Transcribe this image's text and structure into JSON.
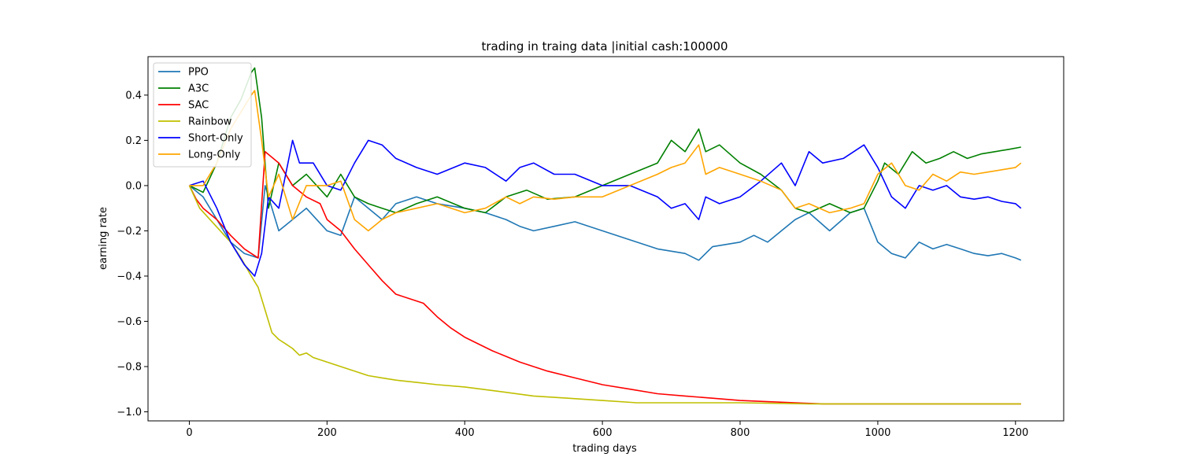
{
  "chart_data": {
    "type": "line",
    "title": "trading in traing data |initial cash:100000",
    "xlabel": "trading days",
    "ylabel": "earning rate",
    "xlim": [
      -60,
      1270
    ],
    "ylim": [
      -1.04,
      0.57
    ],
    "xticks": [
      0,
      200,
      400,
      600,
      800,
      1000,
      1200
    ],
    "yticks": [
      -1.0,
      -0.8,
      -0.6,
      -0.4,
      -0.2,
      0.0,
      0.2,
      0.4
    ],
    "ytick_labels": [
      "−1.0",
      "−0.8",
      "−0.6",
      "−0.4",
      "−0.2",
      "0.0",
      "0.2",
      "0.4"
    ],
    "grid": false,
    "legend_position": "top-left",
    "series": [
      {
        "name": "PPO",
        "color": "#1f77b4",
        "x": [
          0,
          20,
          40,
          60,
          80,
          100,
          110,
          130,
          150,
          170,
          200,
          220,
          240,
          260,
          280,
          300,
          330,
          360,
          400,
          430,
          460,
          480,
          500,
          530,
          560,
          600,
          640,
          680,
          720,
          740,
          760,
          780,
          800,
          820,
          840,
          860,
          880,
          900,
          930,
          960,
          980,
          1000,
          1020,
          1040,
          1060,
          1080,
          1100,
          1120,
          1140,
          1160,
          1180,
          1200,
          1208
        ],
        "values": [
          0.0,
          -0.05,
          -0.15,
          -0.25,
          -0.3,
          -0.32,
          0.0,
          -0.2,
          -0.15,
          -0.1,
          -0.2,
          -0.22,
          -0.05,
          -0.1,
          -0.15,
          -0.08,
          -0.05,
          -0.08,
          -0.1,
          -0.12,
          -0.15,
          -0.18,
          -0.2,
          -0.18,
          -0.16,
          -0.2,
          -0.24,
          -0.28,
          -0.3,
          -0.33,
          -0.27,
          -0.26,
          -0.25,
          -0.22,
          -0.25,
          -0.2,
          -0.15,
          -0.12,
          -0.2,
          -0.12,
          -0.1,
          -0.25,
          -0.3,
          -0.32,
          -0.25,
          -0.28,
          -0.26,
          -0.28,
          -0.3,
          -0.31,
          -0.3,
          -0.32,
          -0.33
        ]
      },
      {
        "name": "A3C",
        "color": "#008000",
        "x": [
          0,
          20,
          40,
          60,
          75,
          90,
          95,
          105,
          115,
          130,
          150,
          170,
          200,
          220,
          240,
          260,
          280,
          300,
          330,
          360,
          400,
          430,
          460,
          490,
          520,
          560,
          600,
          640,
          680,
          700,
          720,
          740,
          750,
          770,
          800,
          830,
          860,
          880,
          900,
          930,
          960,
          980,
          1000,
          1010,
          1030,
          1050,
          1070,
          1090,
          1110,
          1130,
          1150,
          1170,
          1190,
          1208
        ],
        "values": [
          0.0,
          -0.03,
          0.1,
          0.3,
          0.38,
          0.5,
          0.52,
          0.3,
          -0.1,
          0.1,
          0.0,
          0.05,
          -0.05,
          0.05,
          -0.05,
          -0.08,
          -0.1,
          -0.12,
          -0.08,
          -0.05,
          -0.1,
          -0.12,
          -0.05,
          -0.02,
          -0.06,
          -0.05,
          0.0,
          0.05,
          0.1,
          0.2,
          0.15,
          0.25,
          0.15,
          0.18,
          0.1,
          0.05,
          -0.02,
          -0.1,
          -0.12,
          -0.08,
          -0.12,
          -0.1,
          0.02,
          0.1,
          0.05,
          0.15,
          0.1,
          0.12,
          0.15,
          0.12,
          0.14,
          0.15,
          0.16,
          0.17
        ]
      },
      {
        "name": "SAC",
        "color": "#ff0000",
        "x": [
          0,
          10,
          20,
          40,
          60,
          80,
          100,
          110,
          130,
          150,
          170,
          190,
          200,
          220,
          240,
          260,
          280,
          300,
          320,
          340,
          360,
          380,
          400,
          440,
          480,
          520,
          560,
          600,
          640,
          680,
          720,
          760,
          800,
          840,
          880,
          920,
          960,
          1000,
          1100,
          1208
        ],
        "values": [
          0.0,
          -0.06,
          -0.1,
          -0.15,
          -0.22,
          -0.28,
          -0.32,
          0.15,
          0.1,
          0.0,
          -0.05,
          -0.08,
          -0.15,
          -0.2,
          -0.28,
          -0.35,
          -0.42,
          -0.48,
          -0.5,
          -0.52,
          -0.58,
          -0.63,
          -0.67,
          -0.73,
          -0.78,
          -0.82,
          -0.85,
          -0.88,
          -0.9,
          -0.92,
          -0.93,
          -0.94,
          -0.95,
          -0.955,
          -0.96,
          -0.965,
          -0.965,
          -0.965,
          -0.965,
          -0.965
        ]
      },
      {
        "name": "Rainbow",
        "color": "#bfbf00",
        "x": [
          0,
          15,
          30,
          45,
          60,
          75,
          90,
          100,
          110,
          120,
          130,
          140,
          150,
          160,
          170,
          180,
          200,
          220,
          240,
          260,
          280,
          300,
          330,
          360,
          400,
          450,
          500,
          550,
          600,
          650,
          700,
          750,
          800,
          900,
          1000,
          1100,
          1208
        ],
        "values": [
          0.0,
          -0.1,
          -0.15,
          -0.2,
          -0.25,
          -0.32,
          -0.4,
          -0.45,
          -0.55,
          -0.65,
          -0.68,
          -0.7,
          -0.72,
          -0.75,
          -0.74,
          -0.76,
          -0.78,
          -0.8,
          -0.82,
          -0.84,
          -0.85,
          -0.86,
          -0.87,
          -0.88,
          -0.89,
          -0.91,
          -0.93,
          -0.94,
          -0.95,
          -0.96,
          -0.96,
          -0.96,
          -0.96,
          -0.965,
          -0.965,
          -0.965,
          -0.965
        ]
      },
      {
        "name": "Short-Only",
        "color": "#0000ff",
        "x": [
          0,
          20,
          40,
          60,
          80,
          95,
          105,
          115,
          130,
          150,
          160,
          180,
          200,
          220,
          240,
          260,
          280,
          300,
          330,
          360,
          400,
          430,
          460,
          480,
          500,
          530,
          560,
          600,
          640,
          680,
          700,
          720,
          740,
          750,
          770,
          800,
          830,
          860,
          880,
          900,
          920,
          950,
          980,
          1000,
          1020,
          1040,
          1060,
          1080,
          1100,
          1120,
          1140,
          1160,
          1180,
          1200,
          1208
        ],
        "values": [
          0.0,
          0.02,
          -0.1,
          -0.25,
          -0.35,
          -0.4,
          -0.3,
          -0.05,
          -0.1,
          0.2,
          0.1,
          0.1,
          0.0,
          -0.02,
          0.1,
          0.2,
          0.18,
          0.12,
          0.08,
          0.05,
          0.1,
          0.08,
          0.02,
          0.08,
          0.1,
          0.05,
          0.05,
          0.0,
          0.0,
          -0.05,
          -0.1,
          -0.08,
          -0.15,
          -0.05,
          -0.08,
          -0.05,
          0.02,
          0.1,
          0.0,
          0.15,
          0.1,
          0.12,
          0.18,
          0.08,
          -0.05,
          -0.1,
          0.0,
          -0.02,
          0.0,
          -0.05,
          -0.06,
          -0.05,
          -0.07,
          -0.08,
          -0.1
        ]
      },
      {
        "name": "Long-Only",
        "color": "#ffa500",
        "x": [
          0,
          20,
          40,
          60,
          80,
          90,
          95,
          105,
          115,
          130,
          150,
          170,
          200,
          220,
          240,
          260,
          280,
          300,
          330,
          360,
          400,
          430,
          460,
          480,
          500,
          530,
          560,
          600,
          640,
          680,
          700,
          720,
          740,
          750,
          770,
          800,
          830,
          860,
          880,
          900,
          930,
          960,
          980,
          1000,
          1020,
          1040,
          1060,
          1080,
          1100,
          1120,
          1140,
          1160,
          1180,
          1200,
          1208
        ],
        "values": [
          0.0,
          0.0,
          0.1,
          0.25,
          0.35,
          0.4,
          0.42,
          0.2,
          -0.05,
          0.05,
          -0.15,
          0.0,
          0.0,
          0.02,
          -0.15,
          -0.2,
          -0.15,
          -0.12,
          -0.1,
          -0.08,
          -0.12,
          -0.1,
          -0.05,
          -0.08,
          -0.05,
          -0.06,
          -0.05,
          -0.05,
          0.0,
          0.05,
          0.08,
          0.1,
          0.18,
          0.05,
          0.08,
          0.05,
          0.02,
          -0.02,
          -0.1,
          -0.08,
          -0.12,
          -0.1,
          -0.08,
          0.05,
          0.1,
          0.0,
          -0.02,
          0.05,
          0.02,
          0.06,
          0.05,
          0.06,
          0.07,
          0.08,
          0.1
        ]
      }
    ]
  }
}
